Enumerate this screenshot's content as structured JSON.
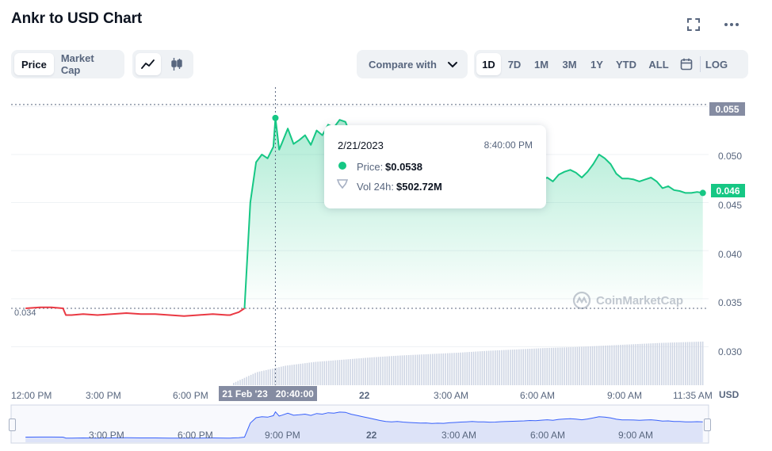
{
  "header": {
    "title": "Ankr to USD Chart"
  },
  "chart_type_tabs": [
    {
      "label": "Price",
      "active": true
    },
    {
      "label": "Market Cap",
      "active": false
    }
  ],
  "view_toggle": {
    "line_icon": "line-chart-icon",
    "candle_icon": "candlestick-icon",
    "active": "line"
  },
  "compare": {
    "label": "Compare with",
    "icon": "chevron-down-icon"
  },
  "ranges": [
    {
      "label": "1D",
      "active": true
    },
    {
      "label": "7D",
      "active": false
    },
    {
      "label": "1M",
      "active": false
    },
    {
      "label": "3M",
      "active": false
    },
    {
      "label": "1Y",
      "active": false
    },
    {
      "label": "YTD",
      "active": false
    },
    {
      "label": "ALL",
      "active": false
    }
  ],
  "calendar_icon": "calendar-icon",
  "log_label": "LOG",
  "fullscreen_icon": "fullscreen-icon",
  "more_icon": "more-horizontal-icon",
  "tooltip": {
    "date": "2/21/2023",
    "time": "8:40:00 PM",
    "price_label": "Price:",
    "price_value": "$0.0538",
    "vol_label": "Vol 24h:",
    "vol_value": "$502.72M"
  },
  "crosshair_label": "21 Feb '23   20:40:00",
  "open_price_label": "0.034",
  "current_price_label": "0.046",
  "high_marker_label": "0.055",
  "currency": "USD",
  "watermark": "CoinMarketCap",
  "colors": {
    "up": "#16c784",
    "down": "#ea3943",
    "crosshair_tag": "#858ca2",
    "high_tag": "#858ca2",
    "volume": "#cfd6e4",
    "navigator": "#dde3f8"
  },
  "chart_data": {
    "type": "line",
    "title": "Ankr to USD Chart",
    "ylabel": "USD",
    "ylim": [
      0.026,
      0.057
    ],
    "y_ticks": [
      "0.055",
      "0.050",
      "0.045",
      "0.040",
      "0.035",
      "0.030"
    ],
    "x_ticks": [
      "12:00 PM",
      "3:00 PM",
      "6:00 PM",
      "22",
      "3:00 AM",
      "6:00 AM",
      "9:00 AM",
      "11:35 AM"
    ],
    "navigator_ticks": [
      "3:00 PM",
      "6:00 PM",
      "9:00 PM",
      "22",
      "3:00 AM",
      "6:00 AM",
      "9:00 AM"
    ],
    "time_range_hours": [
      -0.5,
      23.7
    ],
    "baseline_price": 0.034,
    "price_series": {
      "name": "Price",
      "x": [
        0.0,
        0.5,
        0.9,
        1.3,
        1.4,
        1.6,
        2.0,
        2.5,
        3.0,
        3.5,
        4.0,
        4.5,
        5.0,
        5.5,
        6.0,
        6.5,
        7.0,
        7.1,
        7.2,
        7.4,
        7.6,
        7.8,
        8.0,
        8.2,
        8.4,
        8.6,
        8.67,
        8.8,
        8.9,
        9.1,
        9.3,
        9.5,
        9.7,
        9.9,
        10.1,
        10.3,
        10.5,
        10.7,
        10.9,
        11.1,
        11.3,
        11.5,
        11.7,
        11.9,
        12.1,
        12.3,
        12.5,
        12.7,
        12.9,
        13.1,
        13.3,
        13.5,
        13.7,
        13.9,
        14.1,
        14.3,
        14.5,
        14.7,
        14.9,
        15.1,
        15.3,
        15.5,
        15.7,
        15.9,
        16.1,
        16.3,
        16.5,
        16.7,
        16.9,
        17.1,
        17.3,
        17.5,
        17.7,
        17.9,
        18.1,
        18.3,
        18.5,
        18.7,
        18.9,
        19.1,
        19.3,
        19.5,
        19.7,
        19.9,
        20.1,
        20.3,
        20.5,
        20.7,
        20.9,
        21.1,
        21.3,
        21.5,
        21.7,
        21.9,
        22.1,
        22.3,
        22.5,
        22.7,
        22.9,
        23.1,
        23.3,
        23.5
      ],
      "y": [
        0.034,
        0.0341,
        0.0341,
        0.034,
        0.0333,
        0.0333,
        0.0334,
        0.0333,
        0.0334,
        0.0335,
        0.0334,
        0.0334,
        0.0333,
        0.0332,
        0.0333,
        0.0334,
        0.0333,
        0.0333,
        0.0334,
        0.0336,
        0.034,
        0.045,
        0.0492,
        0.05,
        0.0496,
        0.0508,
        0.0538,
        0.0505,
        0.0512,
        0.0527,
        0.0511,
        0.0515,
        0.052,
        0.051,
        0.0525,
        0.052,
        0.0531,
        0.0528,
        0.0536,
        0.0534,
        0.0519,
        0.051,
        0.05,
        0.049,
        0.048,
        0.047,
        0.0462,
        0.046,
        0.0462,
        0.0458,
        0.0455,
        0.0452,
        0.045,
        0.0451,
        0.0447,
        0.0449,
        0.0448,
        0.0452,
        0.0455,
        0.0458,
        0.046,
        0.0462,
        0.0459,
        0.046,
        0.0457,
        0.0458,
        0.0461,
        0.0463,
        0.0464,
        0.0465,
        0.0467,
        0.047,
        0.0469,
        0.0473,
        0.0476,
        0.0472,
        0.0479,
        0.0482,
        0.0484,
        0.0481,
        0.0476,
        0.0482,
        0.049,
        0.05,
        0.0496,
        0.049,
        0.048,
        0.0475,
        0.0475,
        0.0474,
        0.0472,
        0.0474,
        0.0476,
        0.0472,
        0.0465,
        0.0467,
        0.0463,
        0.0462,
        0.046,
        0.046,
        0.0461,
        0.046
      ]
    },
    "highlight_point": {
      "x": 8.67,
      "y": 0.0538
    },
    "volume_series": {
      "name": "Vol 24h",
      "x": [
        7.2,
        8.0,
        9.0,
        10.0,
        11.0,
        12.0,
        13.0,
        14.0,
        15.0,
        16.0,
        17.0,
        18.0,
        19.0,
        20.0,
        21.0,
        22.0,
        23.0,
        23.5
      ],
      "y_relative": [
        0.05,
        0.28,
        0.42,
        0.5,
        0.55,
        0.6,
        0.64,
        0.67,
        0.7,
        0.74,
        0.77,
        0.8,
        0.82,
        0.85,
        0.88,
        0.91,
        0.93,
        0.94
      ]
    },
    "grid": true,
    "legend": "none"
  }
}
